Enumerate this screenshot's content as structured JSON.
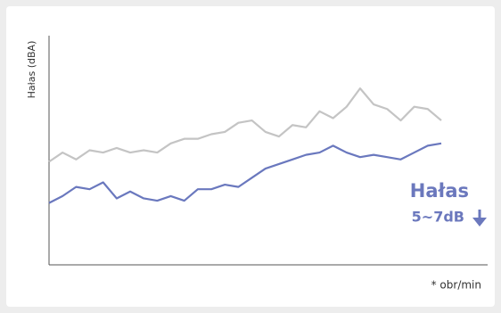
{
  "chart_data": {
    "type": "line",
    "y_label": "Hałas (dBA)",
    "x_note": "* obr/min",
    "annotation": {
      "title": "Hałas",
      "text": "5~7dB"
    },
    "ylim": [
      0,
      100
    ],
    "series": [
      {
        "color": "#c4c4c4",
        "values": [
          45,
          49,
          46,
          50,
          49,
          51,
          49,
          50,
          49,
          53,
          55,
          55,
          57,
          58,
          62,
          63,
          58,
          56,
          61,
          60,
          67,
          64,
          69,
          77,
          70,
          68,
          63,
          69,
          68,
          63
        ]
      },
      {
        "color": "#6a78be",
        "values": [
          27,
          30,
          34,
          33,
          36,
          29,
          32,
          29,
          28,
          30,
          28,
          33,
          33,
          35,
          34,
          38,
          42,
          44,
          46,
          48,
          49,
          52,
          49,
          47,
          48,
          47,
          46,
          49,
          52,
          53
        ]
      }
    ]
  }
}
